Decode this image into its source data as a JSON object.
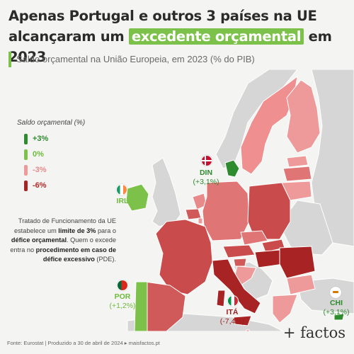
{
  "title": {
    "line1": "Apenas Portugal e outros 3 países na UE",
    "line2_pre": "alcançaram um ",
    "line2_highlight": "excedente orçamental",
    "line2_post": " em 2023"
  },
  "subtitle": "Saldo orçamental na União Europeia, em 2023 (% do PIB)",
  "legend": {
    "title": "Saldo orçamental (%)",
    "items": [
      {
        "label": "+3%",
        "color": "#2e8b2e",
        "text_color": "#2e8b2e"
      },
      {
        "label": "0%",
        "color": "#7cc24a",
        "text_color": "#6dbb3c"
      },
      {
        "label": "-3%",
        "color": "#ee9a9a",
        "text_color": "#e58a8a"
      },
      {
        "label": "-6%",
        "color": "#a82323",
        "text_color": "#b02a2a"
      }
    ]
  },
  "note": {
    "p1": "Tratado de Funcionamento da UE estabelece um ",
    "b1": "limite de 3%",
    "p2": " para o ",
    "b2": "défice orçamental",
    "p3": ". Quem o excede entra no ",
    "b3": "procedimento em caso de défice excessivo",
    "p4": " (PDE)."
  },
  "labels": [
    {
      "id": "din",
      "code": "DIN",
      "value": "(+3,1%)",
      "color": "#2e8b2e",
      "flag": "denmark"
    },
    {
      "id": "irl",
      "code": "IRL",
      "value": "",
      "color": "#6dbb3c",
      "flag": "ireland"
    },
    {
      "id": "por",
      "code": "POR",
      "value": "(+1,2%)",
      "color": "#6dbb3c",
      "flag": "portugal"
    },
    {
      "id": "ita",
      "code": "ITÁ",
      "value": "(-7,4%)",
      "color": "#9b1d1d",
      "flag": "italy"
    },
    {
      "id": "chi",
      "code": "CHI",
      "value": "(+3,1%)",
      "color": "#2e8b2e",
      "flag": "cyprus"
    }
  ],
  "colors": {
    "non_eu": "#d6d6d6",
    "sea": "#f4f4f2",
    "border": "#ffffff"
  },
  "footer": "Fonte: Eurostat | Produzido a 30 de abril de 2024 ▸ maisfactos.pt",
  "logo": "+ factos"
}
